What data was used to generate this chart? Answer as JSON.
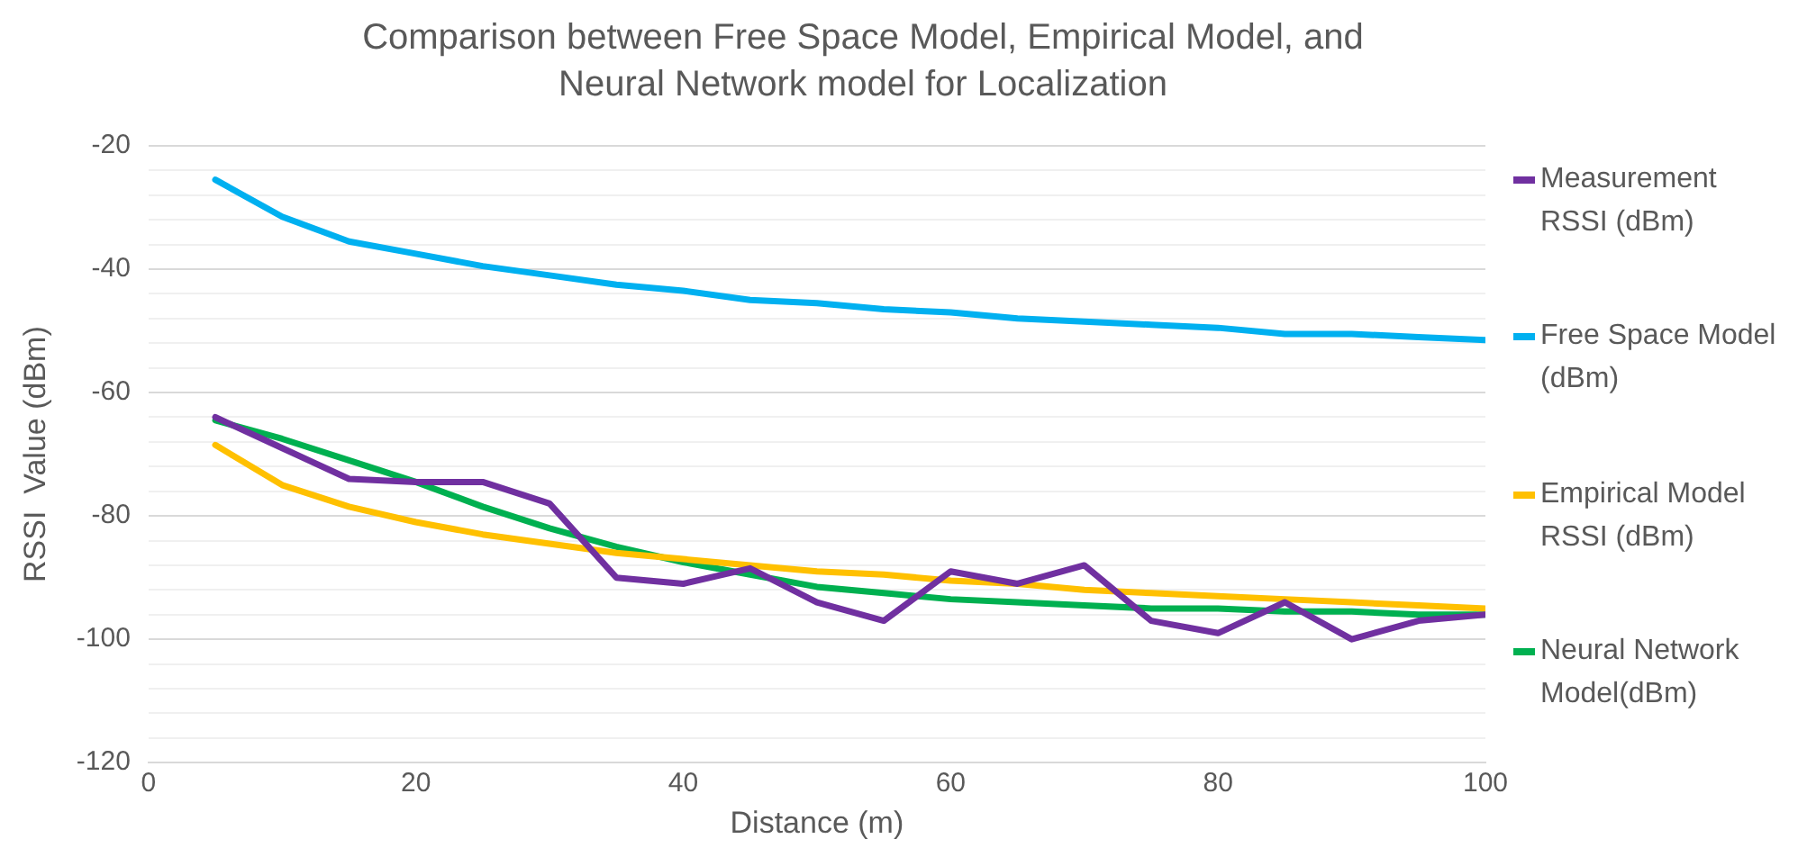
{
  "chart_data": {
    "type": "line",
    "title": "Comparison between Free Space Model, Empirical Model, and Neural Network model for Localization",
    "xlabel": "Distance (m)",
    "ylabel": "RSSI  Value (dBm)",
    "x": [
      5,
      10,
      15,
      20,
      25,
      30,
      35,
      40,
      45,
      50,
      55,
      60,
      65,
      70,
      75,
      80,
      85,
      90,
      95,
      100
    ],
    "series": [
      {
        "name": "Measurement RSSI (dBm)",
        "color": "#7030a0",
        "values": [
          -64,
          -69,
          -74,
          -74.5,
          -74.5,
          -78,
          -90,
          -91,
          -88.5,
          -94,
          -97,
          -89,
          -91,
          -88,
          -97,
          -99,
          -94,
          -100,
          -97,
          -96
        ]
      },
      {
        "name": "Free Space Model (dBm)",
        "color": "#00b0f0",
        "values": [
          -25.5,
          -31.5,
          -35.5,
          -37.5,
          -39.5,
          -41,
          -42.5,
          -43.5,
          -45,
          -45.5,
          -46.5,
          -47,
          -48,
          -48.5,
          -49,
          -49.5,
          -50.5,
          -50.5,
          -51,
          -51.5
        ]
      },
      {
        "name": "Empirical Model RSSI (dBm)",
        "color": "#ffc000",
        "values": [
          -68.5,
          -75,
          -78.5,
          -81,
          -83,
          -84.5,
          -86,
          -87,
          -88,
          -89,
          -89.5,
          -90.5,
          -91,
          -92,
          -92.5,
          -93,
          -93.5,
          -94,
          -94.5,
          -95
        ]
      },
      {
        "name": "Neural Network Model(dBm)",
        "color": "#00b050",
        "values": [
          -64.5,
          -67.5,
          -71,
          -74.5,
          -78.5,
          -82,
          -85,
          -87.5,
          -89.5,
          -91.5,
          -92.5,
          -93.5,
          -94,
          -94.5,
          -95,
          -95,
          -95.5,
          -95.5,
          -96,
          -96
        ]
      }
    ],
    "xlim": [
      0,
      100
    ],
    "xticks": [
      0,
      20,
      40,
      60,
      80,
      100
    ],
    "ylim": [
      -120,
      -20
    ],
    "yticks": [
      -120,
      {
        "value": -116,
        "label": null
      },
      {
        "value": -112,
        "label": null
      },
      {
        "value": -108,
        "label": null
      },
      {
        "value": -104,
        "label": null
      },
      -100,
      {
        "value": -96,
        "label": null
      },
      {
        "value": -92,
        "label": null
      },
      {
        "value": -88,
        "label": null
      },
      {
        "value": -84,
        "label": null
      },
      -80,
      {
        "value": -76,
        "label": null
      },
      {
        "value": -72,
        "label": null
      },
      {
        "value": -68,
        "label": null
      },
      {
        "value": -64,
        "label": null
      },
      -60,
      {
        "value": -56,
        "label": null
      },
      {
        "value": -52,
        "label": null
      },
      {
        "value": -48,
        "label": null
      },
      {
        "value": -44,
        "label": null
      },
      -40,
      {
        "value": -36,
        "label": null
      },
      {
        "value": -32,
        "label": null
      },
      {
        "value": -28,
        "label": null
      },
      {
        "value": -24,
        "label": null
      },
      -20
    ],
    "grid": "y",
    "legend": "right",
    "line_style": "solid"
  }
}
